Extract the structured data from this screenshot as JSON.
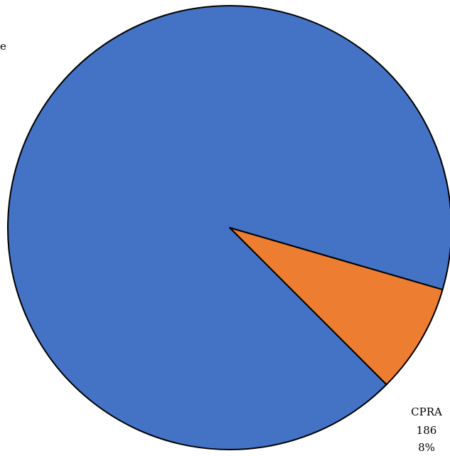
{
  "chart_data": {
    "type": "pie",
    "title": "",
    "start_angle_deg": -45,
    "direction": "counterclockwise",
    "slices": [
      {
        "name": "CPRA",
        "value": 186,
        "percent": "8%",
        "color": "#ED7D31"
      },
      {
        "name": "",
        "value": 2139,
        "percent": "92%",
        "color": "#4472C4"
      }
    ],
    "labels": {
      "cpra": {
        "name": "CPRA",
        "value": "186",
        "percent": "8%"
      },
      "other_partial": "e"
    }
  }
}
